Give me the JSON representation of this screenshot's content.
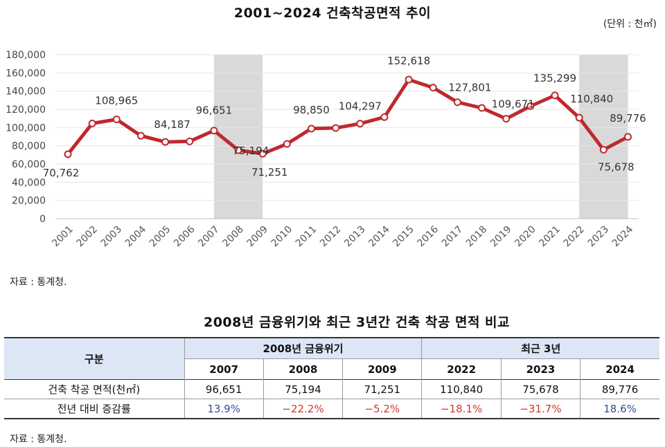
{
  "chart": {
    "title": "2001~2024 건축착공면적 추이",
    "unit": "(단위 : 천㎡)"
  },
  "chart_data": {
    "type": "line",
    "x": [
      "2001",
      "2002",
      "2003",
      "2004",
      "2005",
      "2006",
      "2007",
      "2008",
      "2009",
      "2010",
      "2011",
      "2012",
      "2013",
      "2014",
      "2015",
      "2016",
      "2017",
      "2018",
      "2019",
      "2020",
      "2021",
      "2022",
      "2023",
      "2024"
    ],
    "series": [
      {
        "values": [
          70762,
          104500,
          108965,
          91000,
          84187,
          84800,
          96651,
          75194,
          71251,
          82000,
          98850,
          99500,
          104297,
          111500,
          152618,
          143800,
          127801,
          121500,
          109671,
          123500,
          135299,
          110840,
          75678,
          89776
        ]
      }
    ],
    "data_labels": [
      {
        "index": 0,
        "text": "70,762"
      },
      {
        "index": 2,
        "text": "108,965"
      },
      {
        "index": 4,
        "text": "84,187"
      },
      {
        "index": 6,
        "text": "96,651"
      },
      {
        "index": 7,
        "text": "75,194"
      },
      {
        "index": 8,
        "text": "71,251"
      },
      {
        "index": 10,
        "text": "98,850"
      },
      {
        "index": 12,
        "text": "104,297"
      },
      {
        "index": 14,
        "text": "152,618"
      },
      {
        "index": 16,
        "text": "127,801"
      },
      {
        "index": 18,
        "text": "109,671"
      },
      {
        "index": 20,
        "text": "135,299"
      },
      {
        "index": 21,
        "text": "110,840"
      },
      {
        "index": 22,
        "text": "75,678"
      },
      {
        "index": 23,
        "text": "89,776"
      }
    ],
    "y_ticks": [
      "0",
      "20,000",
      "40,000",
      "60,000",
      "80,000",
      "100,000",
      "120,000",
      "140,000",
      "160,000",
      "180,000"
    ],
    "ylim": [
      0,
      180000
    ],
    "highlight_ranges": [
      [
        "2007",
        "2009"
      ],
      [
        "2022",
        "2024"
      ]
    ],
    "line_color": "#c0282d",
    "grid": true,
    "legend": "none"
  },
  "source1": "자료 : 통계청.",
  "table": {
    "title": "2008년 금융위기와 최근 3년간 건축 착공 면적 비교",
    "corner": "구분",
    "group1": "2008년 금융위기",
    "group2": "최근 3년",
    "years": [
      "2007",
      "2008",
      "2009",
      "2022",
      "2023",
      "2024"
    ],
    "row1_label": "건축 착공 면적(천㎡)",
    "row1": [
      "96,651",
      "75,194",
      "71,251",
      "110,840",
      "75,678",
      "89,776"
    ],
    "row2_label": "전년 대비 증감률",
    "row2": [
      "13.9%",
      "−22.2%",
      "−5.2%",
      "−18.1%",
      "−31.7%",
      "18.6%"
    ]
  },
  "source2": "자료 : 통계청."
}
